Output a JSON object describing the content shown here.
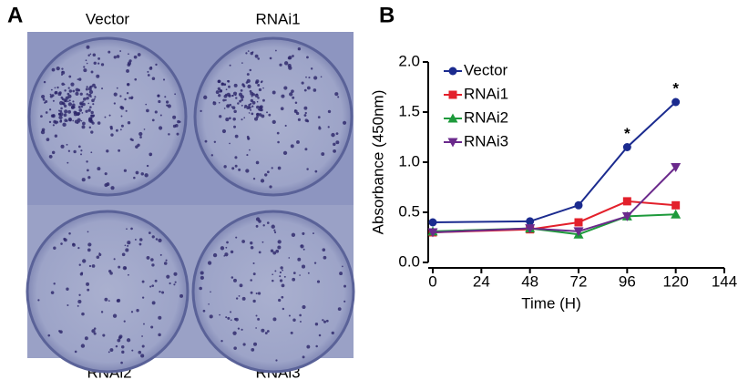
{
  "figure": {
    "panel_a_label": "A",
    "panel_b_label": "B",
    "well_labels": [
      "Vector",
      "RNAi1",
      "RNAi2",
      "RNAi3"
    ]
  },
  "chart_data": {
    "type": "line",
    "x_label": "Time (H)",
    "y_label": "Absorbance (450nm)",
    "x": [
      0,
      48,
      72,
      96,
      120
    ],
    "series": [
      {
        "name": "Vector",
        "color": "#1b2b8f",
        "marker": "circle",
        "values": [
          0.4,
          0.41,
          0.57,
          1.15,
          1.6
        ]
      },
      {
        "name": "RNAi1",
        "color": "#e3202b",
        "marker": "square",
        "values": [
          0.3,
          0.33,
          0.4,
          0.61,
          0.57
        ]
      },
      {
        "name": "RNAi2",
        "color": "#1d9a3b",
        "marker": "triangle-up",
        "values": [
          0.31,
          0.34,
          0.28,
          0.46,
          0.48
        ]
      },
      {
        "name": "RNAi3",
        "color": "#6b2a8c",
        "marker": "triangle-down",
        "values": [
          0.3,
          0.34,
          0.31,
          0.46,
          0.95
        ]
      }
    ],
    "xlim": [
      0,
      144
    ],
    "xticks": [
      0,
      24,
      48,
      72,
      96,
      120,
      144
    ],
    "ylim": [
      0,
      2
    ],
    "yticks": [
      {
        "value": 0,
        "label": "0.0"
      },
      0.5,
      {
        "value": 1,
        "label": "1.0"
      },
      1.5,
      {
        "value": 2,
        "label": "2.0"
      }
    ],
    "legend": "upper left",
    "annotations": [
      {
        "text": "*",
        "x": 96
      },
      {
        "text": "*",
        "x": 120
      }
    ]
  }
}
